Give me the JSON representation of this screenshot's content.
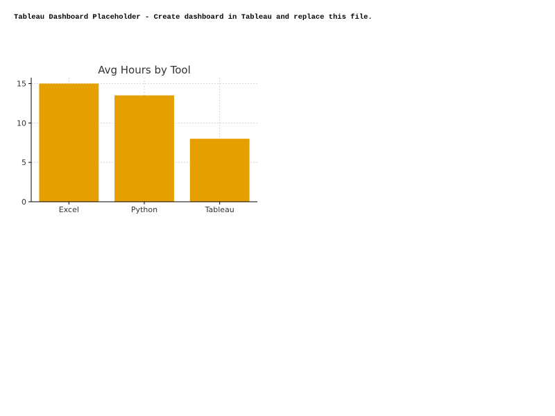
{
  "page": {
    "placeholder_text": "Tableau Dashboard Placeholder - Create dashboard in Tableau and replace this file."
  },
  "colors": {
    "bar": "#e69f00",
    "axis": "#000000",
    "grid": "#cccccc",
    "text": "#333333"
  },
  "chart_data": {
    "type": "bar",
    "title": "Avg Hours by Tool",
    "xlabel": "",
    "ylabel": "",
    "categories": [
      "Excel",
      "Python",
      "Tableau"
    ],
    "values": [
      15,
      13.5,
      8
    ],
    "ylim": [
      0,
      15.75
    ],
    "yticks": [
      0,
      5,
      10,
      15
    ],
    "grid": true,
    "legend": "none"
  }
}
